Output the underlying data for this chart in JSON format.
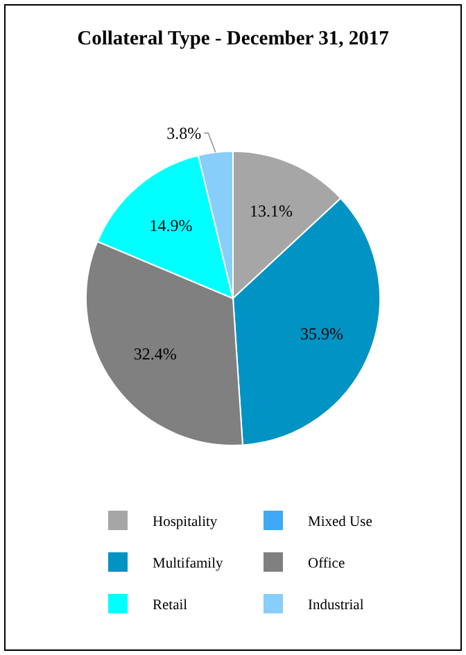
{
  "chart_data": {
    "type": "pie",
    "title": "Collateral Type - December 31, 2017",
    "categories": [
      "Hospitality",
      "Mixed Use",
      "Multifamily",
      "Office",
      "Retail",
      "Industrial"
    ],
    "values": [
      13.1,
      0,
      35.9,
      32.4,
      14.9,
      3.8
    ],
    "value_labels": [
      "13.1%",
      null,
      "35.9%",
      "32.4%",
      "14.9%",
      "3.8%"
    ],
    "colors": [
      "#a6a6a6",
      "#3fa9f5",
      "#0093c4",
      "#808080",
      "#00ffff",
      "#87cefa"
    ],
    "legend": "bottom"
  }
}
